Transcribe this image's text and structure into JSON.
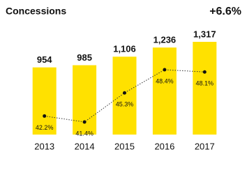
{
  "chart_data": {
    "type": "bar",
    "title": "Concessions",
    "annotation": "+6.6%",
    "categories": [
      "2013",
      "2014",
      "2015",
      "2016",
      "2017"
    ],
    "values": [
      954,
      985,
      1106,
      1236,
      1317
    ],
    "value_labels": [
      "954",
      "985",
      "1,106",
      "1,236",
      "1,317"
    ],
    "color": "#ffe100",
    "line": {
      "values": [
        42.2,
        41.4,
        45.3,
        48.4,
        48.1
      ],
      "value_labels": [
        "42.2%",
        "41.4%",
        "45.3%",
        "48.4%",
        "48.1%"
      ],
      "color": "#333333"
    }
  }
}
